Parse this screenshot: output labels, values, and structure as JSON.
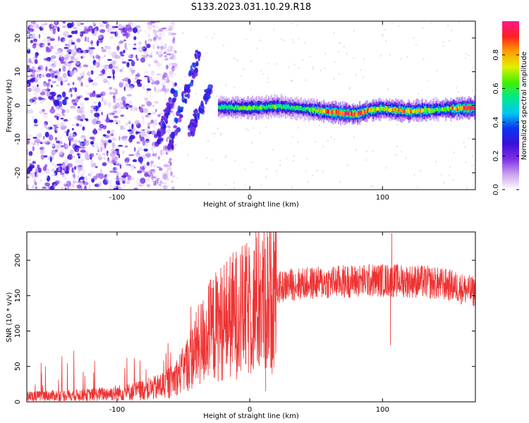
{
  "title": "S133.2023.031.10.29.R18",
  "chart_data": [
    {
      "type": "heatmap",
      "xlabel": "Height of straight line (km)",
      "ylabel": "Frequency (Hz)",
      "xlim": [
        -168,
        170
      ],
      "ylim": [
        -25,
        25
      ],
      "xticks": [
        -100,
        0,
        100
      ],
      "yticks": [
        -20,
        -10,
        0,
        10,
        20
      ],
      "colorbar": {
        "label": "Normalized spectral amplitude",
        "range": [
          0,
          1
        ],
        "ticks": [
          "0.0",
          "0.2",
          "0.4",
          "0.6",
          "0.8"
        ],
        "colormap": [
          "#ffffff",
          "#c9a2f0",
          "#7e2ee6",
          "#3a10d8",
          "#0a36f0",
          "#00c8f0",
          "#00e890",
          "#40f000",
          "#e0f000",
          "#ffa000",
          "#ff2020",
          "#ff1a8c"
        ]
      },
      "features": {
        "noise_region_x": [
          -168,
          -60
        ],
        "noise_amplitude": 0.25,
        "ridge_frequency_hz": [
          [
            -20,
            -0.5
          ],
          [
            0,
            -0.8
          ],
          [
            20,
            -0.3
          ],
          [
            40,
            -1.0
          ],
          [
            60,
            -2.0
          ],
          [
            80,
            -2.6
          ],
          [
            90,
            -1.4
          ],
          [
            100,
            -1.0
          ],
          [
            120,
            -1.8
          ],
          [
            140,
            -1.3
          ],
          [
            160,
            -0.8
          ],
          [
            170,
            -0.8
          ]
        ],
        "ridge_amplitude": [
          [
            -20,
            0.55
          ],
          [
            0,
            0.65
          ],
          [
            20,
            0.6
          ],
          [
            40,
            0.55
          ],
          [
            60,
            0.9
          ],
          [
            80,
            0.9
          ],
          [
            100,
            0.7
          ],
          [
            120,
            0.85
          ],
          [
            140,
            0.6
          ],
          [
            160,
            0.9
          ],
          [
            170,
            0.9
          ]
        ]
      }
    },
    {
      "type": "line",
      "xlabel": "Height of straight line (km)",
      "ylabel": "SNR (10 * v/v)",
      "xlim": [
        -168,
        170
      ],
      "ylim": [
        0,
        240
      ],
      "xticks": [
        -100,
        0,
        100
      ],
      "yticks": [
        0,
        50,
        100,
        150,
        200
      ],
      "series": [
        {
          "color": "#ee3333",
          "envelope": [
            [
              -168,
              8
            ],
            [
              -120,
              10
            ],
            [
              -90,
              14
            ],
            [
              -70,
              20
            ],
            [
              -60,
              28
            ],
            [
              -50,
              45
            ],
            [
              -40,
              75
            ],
            [
              -30,
              100
            ],
            [
              -20,
              115
            ],
            [
              -10,
              125
            ],
            [
              0,
              130
            ],
            [
              10,
              142
            ],
            [
              20,
              160
            ],
            [
              30,
              166
            ],
            [
              50,
              168
            ],
            [
              70,
              170
            ],
            [
              100,
              172
            ],
            [
              130,
              170
            ],
            [
              150,
              165
            ],
            [
              170,
              155
            ]
          ],
          "spikes": [
            [
              8,
              210
            ],
            [
              12,
              15
            ],
            [
              -10,
              200
            ],
            [
              107,
              238
            ],
            [
              106,
              80
            ],
            [
              -37,
              115
            ]
          ]
        }
      ]
    }
  ]
}
